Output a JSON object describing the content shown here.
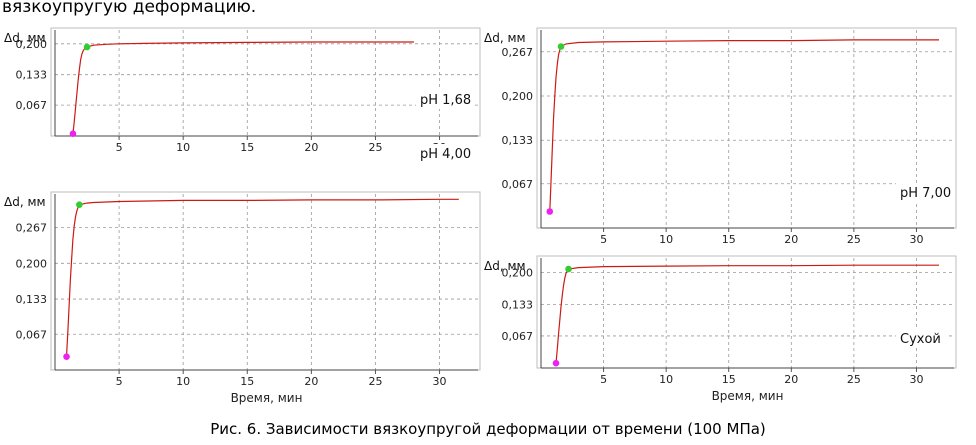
{
  "page": {
    "intro_text": "вязкоупругую деформацию.",
    "caption": "Рис. 6. Зависимости вязкоупругой деформации от времени (100 МПа)"
  },
  "colors": {
    "series": "#cc1a12",
    "start_marker": "#ee22ee",
    "end_marker": "#33cc33",
    "grid": "#9a9a9a"
  },
  "chart_data": [
    {
      "type": "line",
      "label": "pH 1,68",
      "ylabel": "Δd, мм",
      "xlabel": "",
      "xlim": [
        0,
        33
      ],
      "ylim": [
        0,
        0.23
      ],
      "xticks": [
        5,
        10,
        15,
        20,
        25,
        30
      ],
      "xtick_labels": [
        "5",
        "10",
        "15",
        "20",
        "25",
        "30"
      ],
      "yticks": [
        0.067,
        0.133,
        0.2
      ],
      "ytick_labels": [
        "0,067",
        "0,133",
        "0,200"
      ],
      "start_point": [
        1.4,
        0.005
      ],
      "end_point": [
        2.5,
        0.193
      ],
      "x": [
        1.4,
        1.5,
        1.6,
        1.7,
        1.8,
        1.9,
        2.0,
        2.1,
        2.2,
        2.3,
        2.4,
        2.5,
        3,
        4,
        5,
        7,
        10,
        15,
        20,
        25,
        28
      ],
      "y": [
        0.005,
        0.03,
        0.06,
        0.09,
        0.12,
        0.145,
        0.165,
        0.178,
        0.185,
        0.189,
        0.191,
        0.193,
        0.197,
        0.199,
        0.2,
        0.201,
        0.202,
        0.203,
        0.204,
        0.204,
        0.204
      ]
    },
    {
      "type": "line",
      "label": "pH 4,00",
      "ylabel": "Δd, мм",
      "xlabel": "Время, мин",
      "xlim": [
        0,
        33
      ],
      "ylim": [
        0,
        0.33
      ],
      "xticks": [
        5,
        10,
        15,
        20,
        25,
        30
      ],
      "xtick_labels": [
        "5",
        "10",
        "15",
        "20",
        "25",
        "30"
      ],
      "yticks": [
        0.067,
        0.133,
        0.2,
        0.267
      ],
      "ytick_labels": [
        "0,067",
        "0,133",
        "0,200",
        "0,267"
      ],
      "start_point": [
        0.9,
        0.025
      ],
      "end_point": [
        1.9,
        0.31
      ],
      "x": [
        0.9,
        1.0,
        1.1,
        1.2,
        1.3,
        1.4,
        1.5,
        1.6,
        1.7,
        1.8,
        1.9,
        2.5,
        3,
        5,
        10,
        15,
        20,
        25,
        30,
        31.5
      ],
      "y": [
        0.025,
        0.07,
        0.12,
        0.17,
        0.21,
        0.245,
        0.27,
        0.287,
        0.298,
        0.305,
        0.31,
        0.313,
        0.314,
        0.316,
        0.318,
        0.318,
        0.319,
        0.319,
        0.32,
        0.32
      ]
    },
    {
      "type": "line",
      "label": "pH 7,00",
      "ylabel": "Δd, мм",
      "xlabel": "",
      "xlim": [
        0,
        33
      ],
      "ylim": [
        0,
        0.3
      ],
      "xticks": [
        5,
        10,
        15,
        20,
        25,
        30
      ],
      "xtick_labels": [
        "5",
        "10",
        "15",
        "20",
        "25",
        "30"
      ],
      "yticks": [
        0.067,
        0.133,
        0.2,
        0.267
      ],
      "ytick_labels": [
        "0,067",
        "0,133",
        "0,200",
        "0,267"
      ],
      "start_point": [
        0.7,
        0.025
      ],
      "end_point": [
        1.6,
        0.275
      ],
      "x": [
        0.7,
        0.8,
        0.9,
        1.0,
        1.1,
        1.2,
        1.3,
        1.4,
        1.5,
        1.6,
        2,
        3,
        5,
        10,
        15,
        20,
        25,
        30,
        31.8
      ],
      "y": [
        0.025,
        0.07,
        0.12,
        0.165,
        0.2,
        0.228,
        0.248,
        0.262,
        0.27,
        0.275,
        0.279,
        0.281,
        0.282,
        0.283,
        0.284,
        0.284,
        0.285,
        0.285,
        0.285
      ]
    },
    {
      "type": "line",
      "label": "Сухой",
      "ylabel": "Δd, мм",
      "xlabel": "Время, мин",
      "xlim": [
        0,
        33
      ],
      "ylim": [
        0,
        0.23
      ],
      "xticks": [
        5,
        10,
        15,
        20,
        25,
        30
      ],
      "xtick_labels": [
        "5",
        "10",
        "15",
        "20",
        "25",
        "30"
      ],
      "yticks": [
        0.067,
        0.133,
        0.2
      ],
      "ytick_labels": [
        "0,067",
        "0,133",
        "0,200"
      ],
      "start_point": [
        1.2,
        0.01
      ],
      "end_point": [
        2.2,
        0.207
      ],
      "x": [
        1.2,
        1.3,
        1.4,
        1.5,
        1.6,
        1.7,
        1.8,
        1.9,
        2.0,
        2.1,
        2.2,
        3,
        5,
        10,
        15,
        20,
        25,
        30,
        31.8
      ],
      "y": [
        0.01,
        0.04,
        0.07,
        0.1,
        0.128,
        0.152,
        0.172,
        0.188,
        0.198,
        0.203,
        0.207,
        0.21,
        0.212,
        0.213,
        0.214,
        0.214,
        0.215,
        0.215,
        0.215
      ]
    }
  ]
}
